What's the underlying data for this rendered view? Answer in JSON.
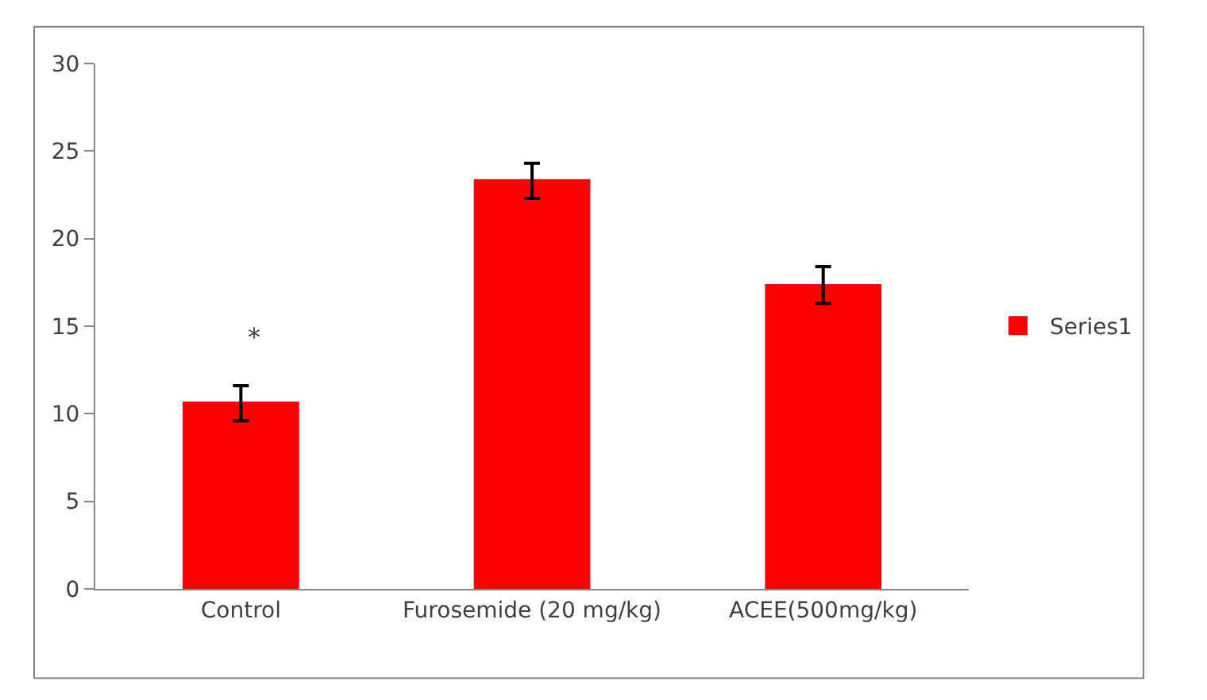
{
  "chart_data": {
    "type": "bar",
    "categories": [
      "Control",
      "Furosemide (20 mg/kg)",
      "ACEE(500mg/kg)"
    ],
    "series": [
      {
        "name": "Series1",
        "color": "#ff0000",
        "values": [
          10.7,
          23.4,
          17.4
        ],
        "errors": [
          [
            9.6,
            11.6
          ],
          [
            22.3,
            24.3
          ],
          [
            16.3,
            18.4
          ]
        ]
      }
    ],
    "ylim": [
      0,
      30
    ],
    "yticks": [
      0,
      5,
      10,
      15,
      20,
      25,
      30
    ],
    "legend": "right",
    "annotations": [
      "*"
    ]
  }
}
